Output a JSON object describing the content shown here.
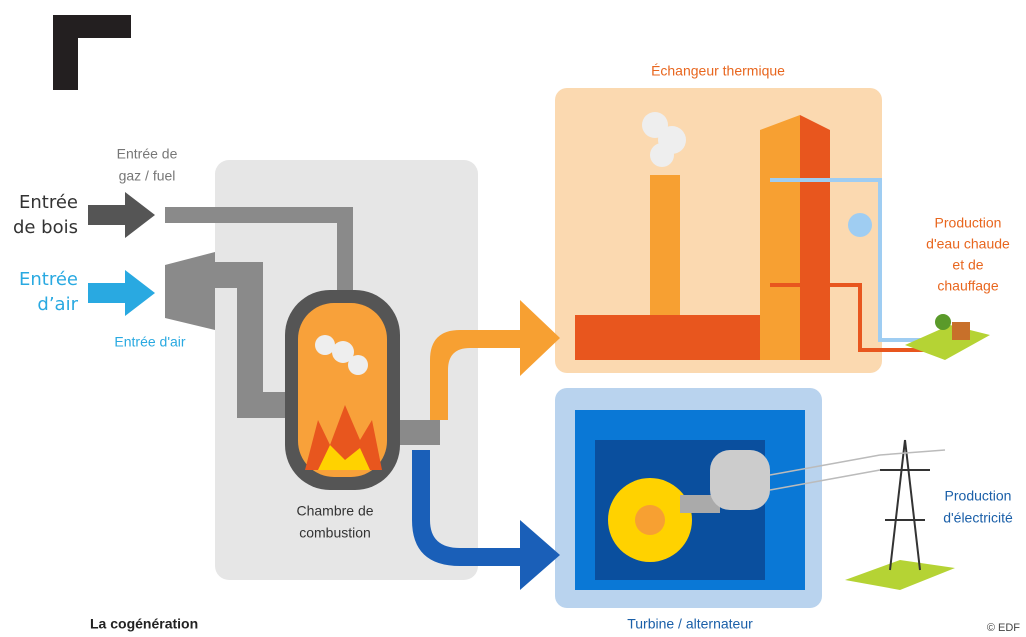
{
  "overlay": {
    "wood_input": [
      "Entrée",
      "de bois"
    ],
    "air_input": [
      "Entrée",
      "d’air"
    ]
  },
  "diagram": {
    "gas_input": [
      "Entrée de",
      "gaz / fuel"
    ],
    "air_input": "Entrée d'air",
    "combustion_chamber": [
      "Chambre de",
      "combustion"
    ],
    "heat_exchanger": "Échangeur thermique",
    "hot_water": [
      "Production",
      "d'eau chaude",
      "et de",
      "chauffage"
    ],
    "electricity": [
      "Production",
      "d'électricité"
    ],
    "turbine": "Turbine / alternateur"
  },
  "caption": "La cogénération",
  "credit": "© EDF"
}
